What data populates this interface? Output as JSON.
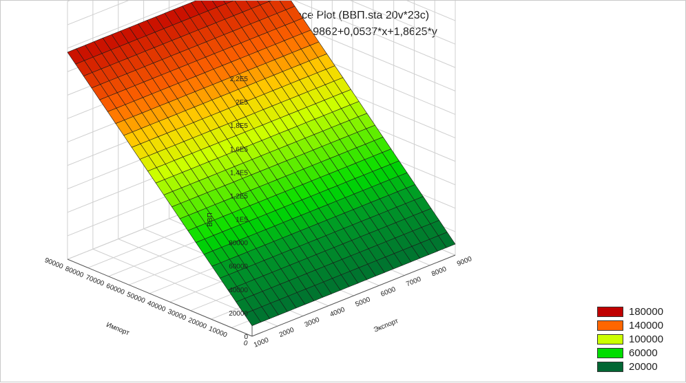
{
  "chart_data": {
    "type": "surface3d",
    "title": "3D Surface Plot (ВВП.sta 20v*23c)",
    "subtitle": "ВВП = 8915,9862+0,0537*x+1,8625*y",
    "equation": {
      "intercept": 8915.9862,
      "coef_x": 0.0537,
      "coef_y": 1.8625
    },
    "z_axis": {
      "label": "ВВП",
      "ticks": [
        "0",
        "20000",
        "40000",
        "60000",
        "80000",
        "1E5",
        "1,2E5",
        "1,4E5",
        "1,6E5",
        "1,8E5",
        "2E5",
        "2,2E5"
      ],
      "range": [
        0,
        220000
      ]
    },
    "left_axis": {
      "label": "Импорт",
      "ticks": [
        "0",
        "10000",
        "20000",
        "30000",
        "40000",
        "50000",
        "60000",
        "70000",
        "80000",
        "90000"
      ],
      "range": [
        0,
        90000
      ]
    },
    "right_axis": {
      "label": "Экспорт",
      "ticks": [
        "1000",
        "2000",
        "3000",
        "4000",
        "5000",
        "6000",
        "7000",
        "8000",
        "9000"
      ],
      "range": [
        1000,
        9000
      ]
    },
    "legend": {
      "placement": "bottom-right",
      "items": [
        {
          "label": "180000",
          "color": "#c00000"
        },
        {
          "label": "140000",
          "color": "#ff6600"
        },
        {
          "label": "100000",
          "color": "#ccff00"
        },
        {
          "label": "60000",
          "color": "#00dd00"
        },
        {
          "label": "20000",
          "color": "#006633"
        }
      ]
    },
    "grid": true
  }
}
